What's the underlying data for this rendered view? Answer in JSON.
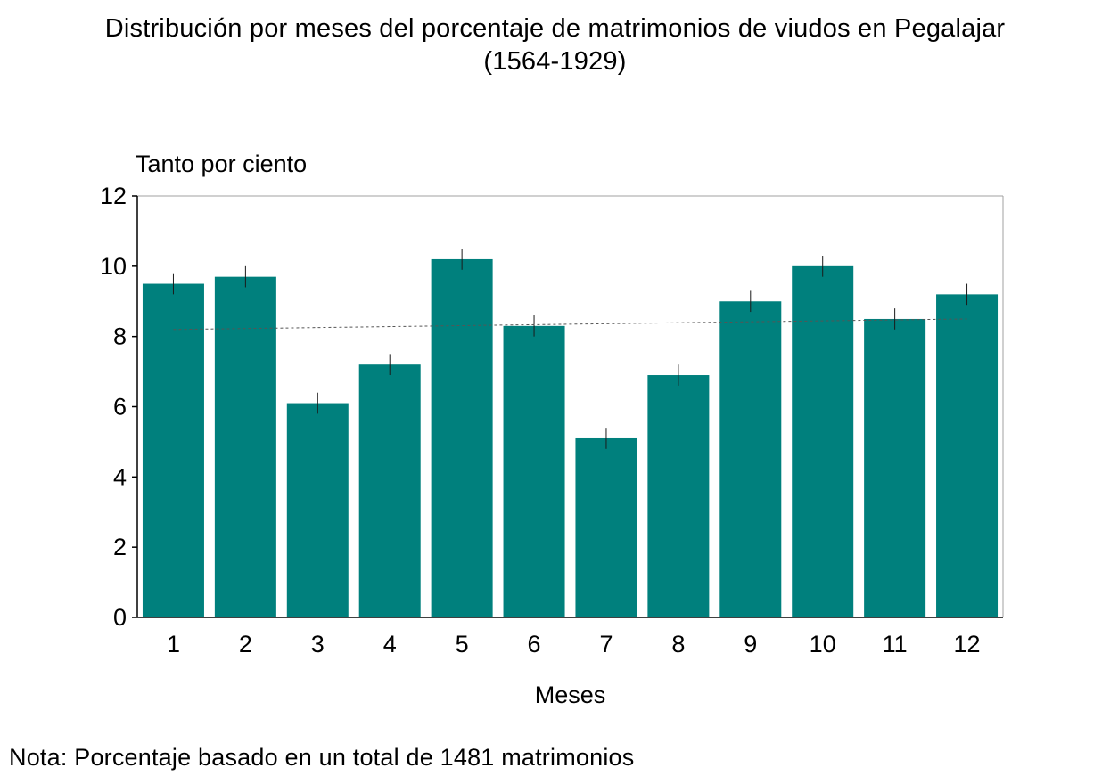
{
  "colors": {
    "bar": "#00807d",
    "axis": "#000000",
    "frame": "#a0a0a0",
    "trend": "#555555"
  },
  "note": "Nota: Porcentaje basado en un total de 1481 matrimonios",
  "chart_data": {
    "type": "bar",
    "title": "Distribución por meses del porcentaje de matrimonios de viudos en Pegalajar",
    "subtitle": "(1564-1929)",
    "xlabel": "Meses",
    "ylabel": "Tanto por ciento",
    "categories": [
      "1",
      "2",
      "3",
      "4",
      "5",
      "6",
      "7",
      "8",
      "9",
      "10",
      "11",
      "12"
    ],
    "values": [
      9.5,
      9.7,
      6.1,
      7.2,
      10.2,
      8.3,
      5.1,
      6.9,
      9.0,
      10.0,
      8.5,
      9.2
    ],
    "error_bars": true,
    "trend_line": {
      "style": "dashed",
      "start": 8.2,
      "end": 8.5
    },
    "ylim": [
      0,
      12
    ],
    "yticks": [
      "0",
      "2",
      "4",
      "6",
      "8",
      "10",
      "12"
    ],
    "grid": false
  }
}
